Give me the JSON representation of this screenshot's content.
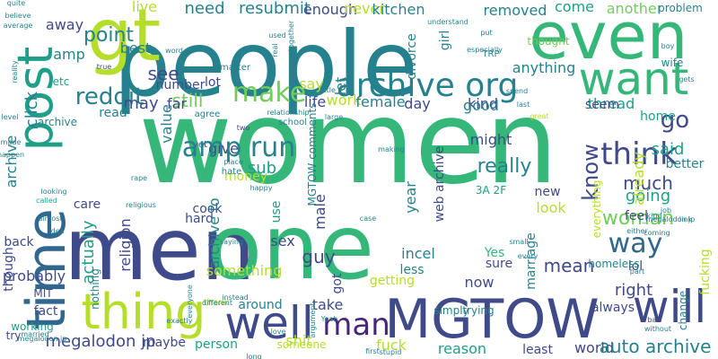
{
  "palette": {
    "background": "#ffffff",
    "dark-purple": "#482677",
    "indigo": "#3f4a8a",
    "blue": "#31678e",
    "teal": "#26818e",
    "sea": "#1f9e89",
    "green": "#35b779",
    "light-green": "#6ece58",
    "lime": "#b5de2b",
    "yellow": "#e7e419"
  },
  "words": [
    {
      "text": "women",
      "color": "green"
    },
    {
      "text": "people",
      "color": "teal"
    },
    {
      "text": "men",
      "color": "indigo"
    },
    {
      "text": "one",
      "color": "green"
    },
    {
      "text": "gt",
      "color": "lime"
    },
    {
      "text": "even",
      "color": "green"
    },
    {
      "text": "time",
      "color": "blue"
    },
    {
      "text": "post",
      "color": "sea"
    },
    {
      "text": "want",
      "color": "green"
    },
    {
      "text": "MGTOW",
      "color": "indigo"
    },
    {
      "text": "thing",
      "color": "lime"
    },
    {
      "text": "well",
      "color": "indigo"
    },
    {
      "text": "will",
      "color": "indigo"
    },
    {
      "text": "archive org",
      "color": "teal"
    },
    {
      "text": "man",
      "color": "dark-purple"
    },
    {
      "text": "make",
      "color": "light-green"
    },
    {
      "text": "think",
      "color": "indigo"
    },
    {
      "text": "way",
      "color": "blue"
    },
    {
      "text": "go",
      "color": "indigo"
    },
    {
      "text": "know",
      "color": "indigo"
    },
    {
      "text": "reddit",
      "color": "teal"
    },
    {
      "text": "really",
      "color": "teal"
    },
    {
      "text": "woman",
      "color": "light-green"
    },
    {
      "text": "point",
      "color": "teal"
    },
    {
      "text": "need",
      "color": "teal"
    },
    {
      "text": "resubmit",
      "color": "teal"
    },
    {
      "text": "enough",
      "color": "indigo"
    },
    {
      "text": "never",
      "color": "lime"
    },
    {
      "text": "kitchen",
      "color": "teal"
    },
    {
      "text": "removed",
      "color": "teal"
    },
    {
      "text": "come",
      "color": "sea"
    },
    {
      "text": "another",
      "color": "light-green"
    },
    {
      "text": "problem",
      "color": "teal"
    },
    {
      "text": "thought",
      "color": "light-green"
    },
    {
      "text": "anything",
      "color": "teal"
    },
    {
      "text": "live",
      "color": "lime"
    },
    {
      "text": "best",
      "color": "teal"
    },
    {
      "text": "see",
      "color": "indigo"
    },
    {
      "text": "say",
      "color": "lime"
    },
    {
      "text": "let",
      "color": "teal"
    },
    {
      "text": "work",
      "color": "lime"
    },
    {
      "text": "day",
      "color": "indigo"
    },
    {
      "text": "kind",
      "color": "indigo"
    },
    {
      "text": "good",
      "color": "teal"
    },
    {
      "text": "thread",
      "color": "sea"
    },
    {
      "text": "home",
      "color": "sea"
    },
    {
      "text": "seem",
      "color": "indigo"
    },
    {
      "text": "still",
      "color": "light-green"
    },
    {
      "text": "lot",
      "color": "indigo"
    },
    {
      "text": "number",
      "color": "indigo"
    },
    {
      "text": "may",
      "color": "indigo"
    },
    {
      "text": "far",
      "color": "indigo"
    },
    {
      "text": "read",
      "color": "teal"
    },
    {
      "text": "value",
      "color": "teal"
    },
    {
      "text": "give",
      "color": "indigo"
    },
    {
      "text": "money",
      "color": "lime"
    },
    {
      "text": "sub",
      "color": "sea"
    },
    {
      "text": "said",
      "color": "sea"
    },
    {
      "text": "better",
      "color": "teal"
    },
    {
      "text": "much",
      "color": "indigo"
    },
    {
      "text": "going",
      "color": "sea"
    },
    {
      "text": "might",
      "color": "indigo"
    },
    {
      "text": "female",
      "color": "teal"
    },
    {
      "text": "life",
      "color": "indigo"
    },
    {
      "text": "web archive",
      "color": "indigo"
    },
    {
      "text": "3A 2F",
      "color": "sea"
    },
    {
      "text": "new",
      "color": "indigo"
    },
    {
      "text": "look",
      "color": "lime"
    },
    {
      "text": "feel",
      "color": "indigo"
    },
    {
      "text": "mean",
      "color": "indigo"
    },
    {
      "text": "right",
      "color": "indigo"
    },
    {
      "text": "lol",
      "color": "indigo"
    },
    {
      "text": "archive",
      "color": "teal"
    },
    {
      "text": "click",
      "color": "teal"
    },
    {
      "text": "amp",
      "color": "teal"
    },
    {
      "text": "etc",
      "color": "sea"
    },
    {
      "text": "actually",
      "color": "sea"
    },
    {
      "text": "care",
      "color": "indigo"
    },
    {
      "text": "cook",
      "color": "indigo"
    },
    {
      "text": "hard",
      "color": "indigo"
    },
    {
      "text": "religion",
      "color": "indigo"
    },
    {
      "text": "guy",
      "color": "indigo"
    },
    {
      "text": "sex",
      "color": "indigo"
    },
    {
      "text": "male",
      "color": "indigo"
    },
    {
      "text": "year",
      "color": "teal"
    },
    {
      "text": "Yes",
      "color": "green"
    },
    {
      "text": "sure",
      "color": "indigo"
    },
    {
      "text": "incel",
      "color": "teal"
    },
    {
      "text": "less",
      "color": "teal"
    },
    {
      "text": "now",
      "color": "indigo"
    },
    {
      "text": "take",
      "color": "indigo"
    },
    {
      "text": "something",
      "color": "lime"
    },
    {
      "text": "around",
      "color": "teal"
    },
    {
      "text": "archive fo",
      "color": "teal"
    },
    {
      "text": "back",
      "color": "indigo"
    },
    {
      "text": "probably",
      "color": "indigo"
    },
    {
      "text": "MIT",
      "color": "indigo"
    },
    {
      "text": "fact",
      "color": "indigo"
    },
    {
      "text": "megalodon jp",
      "color": "indigo"
    },
    {
      "text": "maybe",
      "color": "indigo"
    },
    {
      "text": "person",
      "color": "sea"
    },
    {
      "text": "shit",
      "color": "lime"
    },
    {
      "text": "fuck",
      "color": "lime"
    },
    {
      "text": "reason",
      "color": "sea"
    },
    {
      "text": "least",
      "color": "indigo"
    },
    {
      "text": "world",
      "color": "indigo"
    },
    {
      "text": "auto archive",
      "color": "teal"
    },
    {
      "text": "someone",
      "color": "lime"
    },
    {
      "text": "always",
      "color": "indigo"
    },
    {
      "text": "fucking",
      "color": "lime"
    },
    {
      "text": "change",
      "color": "teal"
    },
    {
      "text": "nothing",
      "color": "teal"
    },
    {
      "text": "though",
      "color": "indigo"
    },
    {
      "text": "try",
      "color": "indigo"
    },
    {
      "text": "away",
      "color": "indigo"
    },
    {
      "text": "getting",
      "color": "lime"
    },
    {
      "text": "trying",
      "color": "teal"
    },
    {
      "text": "simply",
      "color": "teal"
    },
    {
      "text": "marriage",
      "color": "teal"
    },
    {
      "text": "everything",
      "color": "lime"
    },
    {
      "text": "already",
      "color": "lime"
    },
    {
      "text": "divorce",
      "color": "teal"
    },
    {
      "text": "girl",
      "color": "teal"
    },
    {
      "text": "use",
      "color": "sea"
    },
    {
      "text": "got",
      "color": "indigo"
    },
    {
      "text": "MGTOW comments",
      "color": "teal"
    },
    {
      "text": "wife",
      "color": "teal"
    },
    {
      "text": "quite",
      "color": "teal"
    },
    {
      "text": "believe",
      "color": "teal"
    },
    {
      "text": "average",
      "color": "teal"
    },
    {
      "text": "reality",
      "color": "teal"
    },
    {
      "text": "level",
      "color": "teal"
    },
    {
      "text": "made",
      "color": "teal"
    },
    {
      "text": "happen",
      "color": "teal"
    },
    {
      "text": "called",
      "color": "sea"
    },
    {
      "text": "looking",
      "color": "teal"
    },
    {
      "text": "almost",
      "color": "teal"
    },
    {
      "text": "idea",
      "color": "teal"
    },
    {
      "text": "working",
      "color": "sea"
    },
    {
      "text": "megalodon jp",
      "color": "teal"
    },
    {
      "text": "_archive",
      "color": "teal"
    },
    {
      "text": "true",
      "color": "indigo"
    },
    {
      "text": "word",
      "color": "teal"
    },
    {
      "text": "used",
      "color": "teal"
    },
    {
      "text": "real",
      "color": "teal"
    },
    {
      "text": "together",
      "color": "teal"
    },
    {
      "text": "understand",
      "color": "teal"
    },
    {
      "text": "put",
      "color": "teal"
    },
    {
      "text": "especially",
      "color": "teal"
    },
    {
      "text": "TRP",
      "color": "teal"
    },
    {
      "text": "large",
      "color": "teal"
    },
    {
      "text": "little",
      "color": "teal"
    },
    {
      "text": "matter",
      "color": "teal"
    },
    {
      "text": "agree",
      "color": "teal"
    },
    {
      "text": "two",
      "color": "indigo"
    },
    {
      "text": "yet",
      "color": "indigo"
    },
    {
      "text": "relationship",
      "color": "teal"
    },
    {
      "text": "school",
      "color": "teal"
    },
    {
      "text": "place",
      "color": "teal"
    },
    {
      "text": "religious",
      "color": "teal"
    },
    {
      "text": "happy",
      "color": "teal"
    },
    {
      "text": "rape",
      "color": "teal"
    },
    {
      "text": "case",
      "color": "teal"
    },
    {
      "text": "making",
      "color": "teal"
    },
    {
      "text": "spend",
      "color": "teal"
    },
    {
      "text": "great",
      "color": "lime"
    },
    {
      "text": "boy",
      "color": "teal"
    },
    {
      "text": "last",
      "color": "teal"
    },
    {
      "text": "gets",
      "color": "teal"
    },
    {
      "text": "kind",
      "color": "teal"
    },
    {
      "text": "link",
      "color": "teal"
    },
    {
      "text": "job",
      "color": "teal"
    },
    {
      "text": "coming",
      "color": "teal"
    },
    {
      "text": "either",
      "color": "teal"
    },
    {
      "text": "homeless",
      "color": "teal"
    },
    {
      "text": "part",
      "color": "teal"
    },
    {
      "text": "bad",
      "color": "indigo"
    },
    {
      "text": "without",
      "color": "teal"
    },
    {
      "text": "every",
      "color": "teal"
    },
    {
      "text": "small",
      "color": "teal"
    },
    {
      "text": "saying",
      "color": "teal"
    },
    {
      "text": "everyone",
      "color": "teal"
    },
    {
      "text": "thank",
      "color": "lime"
    },
    {
      "text": "different",
      "color": "teal"
    },
    {
      "text": "instead",
      "color": "teal"
    },
    {
      "text": "love",
      "color": "teal"
    },
    {
      "text": "argument",
      "color": "teal"
    },
    {
      "text": "Yeah",
      "color": "teal"
    },
    {
      "text": "first",
      "color": "teal"
    },
    {
      "text": "stupid",
      "color": "teal"
    },
    {
      "text": "long",
      "color": "teal"
    },
    {
      "text": "exactly",
      "color": "teal"
    },
    {
      "text": "married",
      "color": "teal"
    },
    {
      "text": "hate",
      "color": "teal"
    },
    {
      "text": "amp run",
      "color": "teal"
    },
    {
      "text": "_megalodon jp",
      "color": "teal"
    },
    {
      "text": "s",
      "color": "teal"
    },
    {
      "text": "u",
      "color": "indigo"
    },
    {
      "text": "jp",
      "color": "teal"
    }
  ]
}
